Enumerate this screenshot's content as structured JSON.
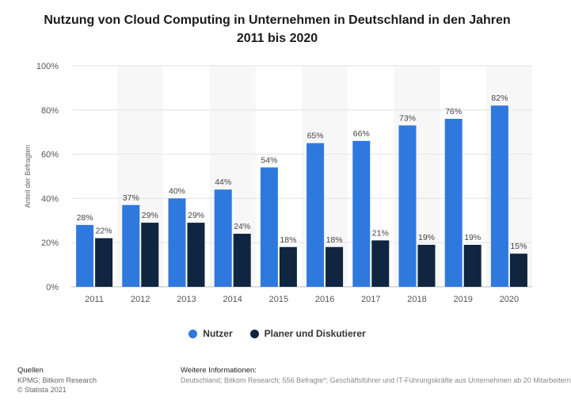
{
  "chart_data": {
    "type": "bar",
    "title": "Nutzung von Cloud Computing in Unternehmen in Deutschland in den Jahren 2011 bis 2020",
    "xlabel": "",
    "ylabel": "Anteil der Befragten",
    "ylim": [
      0,
      100
    ],
    "yticks": [
      "0%",
      "20%",
      "40%",
      "60%",
      "80%",
      "100%"
    ],
    "categories": [
      "2011",
      "2012",
      "2013",
      "2014",
      "2015",
      "2016",
      "2017",
      "2018",
      "2019",
      "2020"
    ],
    "series": [
      {
        "name": "Nutzer",
        "color": "#2f79de",
        "values": [
          28,
          37,
          40,
          44,
          54,
          65,
          66,
          73,
          76,
          82
        ],
        "labels": [
          "28%",
          "37%",
          "40%",
          "44%",
          "54%",
          "65%",
          "66%",
          "73%",
          "76%",
          "82%"
        ]
      },
      {
        "name": "Planer und Diskutierer",
        "color": "#0f2540",
        "values": [
          22,
          29,
          29,
          24,
          18,
          18,
          21,
          19,
          19,
          15
        ],
        "labels": [
          "22%",
          "29%",
          "29%",
          "24%",
          "18%",
          "18%",
          "21%",
          "19%",
          "19%",
          "15%"
        ]
      }
    ],
    "legend_position": "bottom"
  },
  "footer": {
    "sources_heading": "Quellen",
    "sources_line1": "KPMG; Bitkom Research",
    "sources_line2": "© Statista 2021",
    "info_heading": "Weitere Informationen:",
    "info_text": "Deutschland; Bitkom Research; 556 Befragte*; Geschäftsführer und IT-Führungskräfte aus Unternehmen ab 20 Mitarbeitern"
  }
}
